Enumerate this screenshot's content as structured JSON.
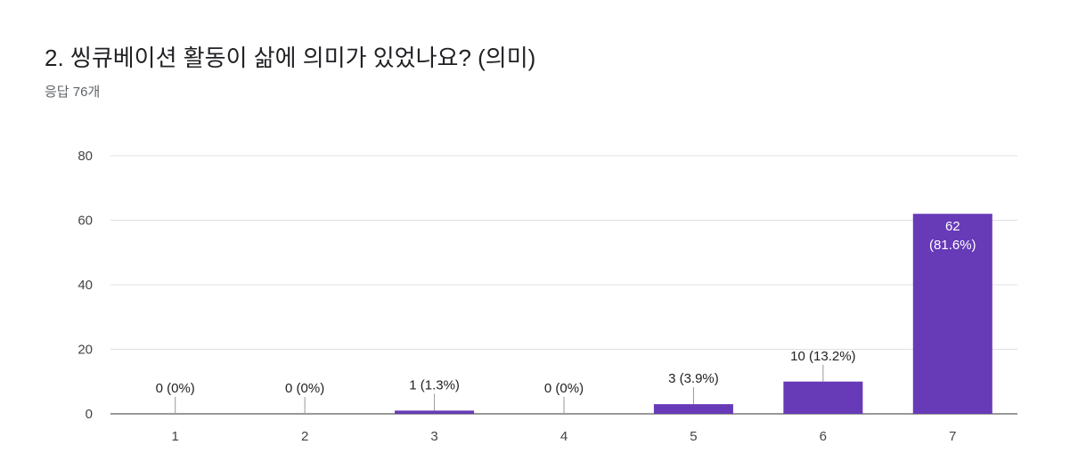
{
  "chart_data": {
    "type": "bar",
    "title": "2. 씽큐베이션 활동이 삶에 의미가 있었나요? (의미)",
    "subtitle": "응답 76개",
    "categories": [
      "1",
      "2",
      "3",
      "4",
      "5",
      "6",
      "7"
    ],
    "values": [
      0,
      0,
      1,
      0,
      3,
      10,
      62
    ],
    "value_labels": [
      "0 (0%)",
      "0 (0%)",
      "1 (1.3%)",
      "0 (0%)",
      "3 (3.9%)",
      "10 (13.2%)",
      "62 (81.6%)"
    ],
    "color": "#673ab7",
    "ylim": [
      0,
      80
    ],
    "yticks": [
      0,
      20,
      40,
      60,
      80
    ],
    "grid": true
  }
}
